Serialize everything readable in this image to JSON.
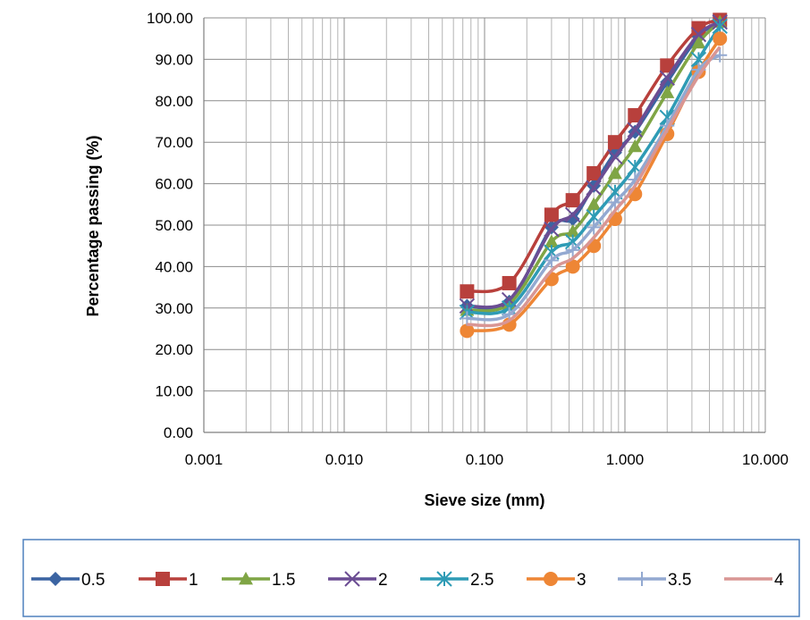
{
  "chart_data": {
    "type": "line",
    "xscale": "log",
    "xlim": [
      0.001,
      10
    ],
    "ylim": [
      0,
      100
    ],
    "xlabel": "Sieve size (mm)",
    "ylabel": "Percentage passing (%)",
    "x_ticks": [
      "0.001",
      "0.010",
      "0.100",
      "1.000",
      "10.000"
    ],
    "y_ticks": [
      "0.00",
      "10.00",
      "20.00",
      "30.00",
      "40.00",
      "50.00",
      "60.00",
      "70.00",
      "80.00",
      "90.00",
      "100.00"
    ],
    "grid": true,
    "legend_position": "bottom",
    "x": [
      0.075,
      0.15,
      0.3,
      0.425,
      0.6,
      0.85,
      1.18,
      2.0,
      3.35,
      4.75
    ],
    "series": [
      {
        "name": "0.5",
        "color": "#3B64A2",
        "marker": "diamond",
        "values": [
          30.5,
          31.5,
          49.5,
          51.5,
          59.5,
          67.5,
          72.5,
          84.5,
          95.5,
          99.0
        ]
      },
      {
        "name": "1",
        "color": "#B8403C",
        "marker": "square",
        "values": [
          34.0,
          36.0,
          52.5,
          56.0,
          62.5,
          70.0,
          76.5,
          88.5,
          97.5,
          99.5
        ]
      },
      {
        "name": "1.5",
        "color": "#7FA545",
        "marker": "triangle",
        "values": [
          29.5,
          31.0,
          46.0,
          48.5,
          55.0,
          62.5,
          69.0,
          82.0,
          94.0,
          99.0
        ]
      },
      {
        "name": "2",
        "color": "#6B4D93",
        "marker": "x",
        "values": [
          30.5,
          32.0,
          49.0,
          52.5,
          59.0,
          66.5,
          73.0,
          85.5,
          96.0,
          99.0
        ]
      },
      {
        "name": "2.5",
        "color": "#2E9BB5",
        "marker": "star",
        "values": [
          29.0,
          30.0,
          43.5,
          46.0,
          52.0,
          58.0,
          64.0,
          76.0,
          90.0,
          98.0
        ]
      },
      {
        "name": "3",
        "color": "#EE8635",
        "marker": "circle",
        "values": [
          24.5,
          26.0,
          37.0,
          40.0,
          45.0,
          51.5,
          57.5,
          72.0,
          87.0,
          95.0
        ]
      },
      {
        "name": "3.5",
        "color": "#93A9D1",
        "marker": "plus",
        "values": [
          27.5,
          28.5,
          41.5,
          44.0,
          49.5,
          55.5,
          61.0,
          74.0,
          87.5,
          91.0
        ]
      },
      {
        "name": "4",
        "color": "#D99694",
        "marker": "none",
        "values": [
          26.0,
          27.0,
          39.0,
          42.0,
          47.0,
          53.5,
          59.5,
          73.0,
          86.0,
          93.0
        ]
      }
    ]
  }
}
